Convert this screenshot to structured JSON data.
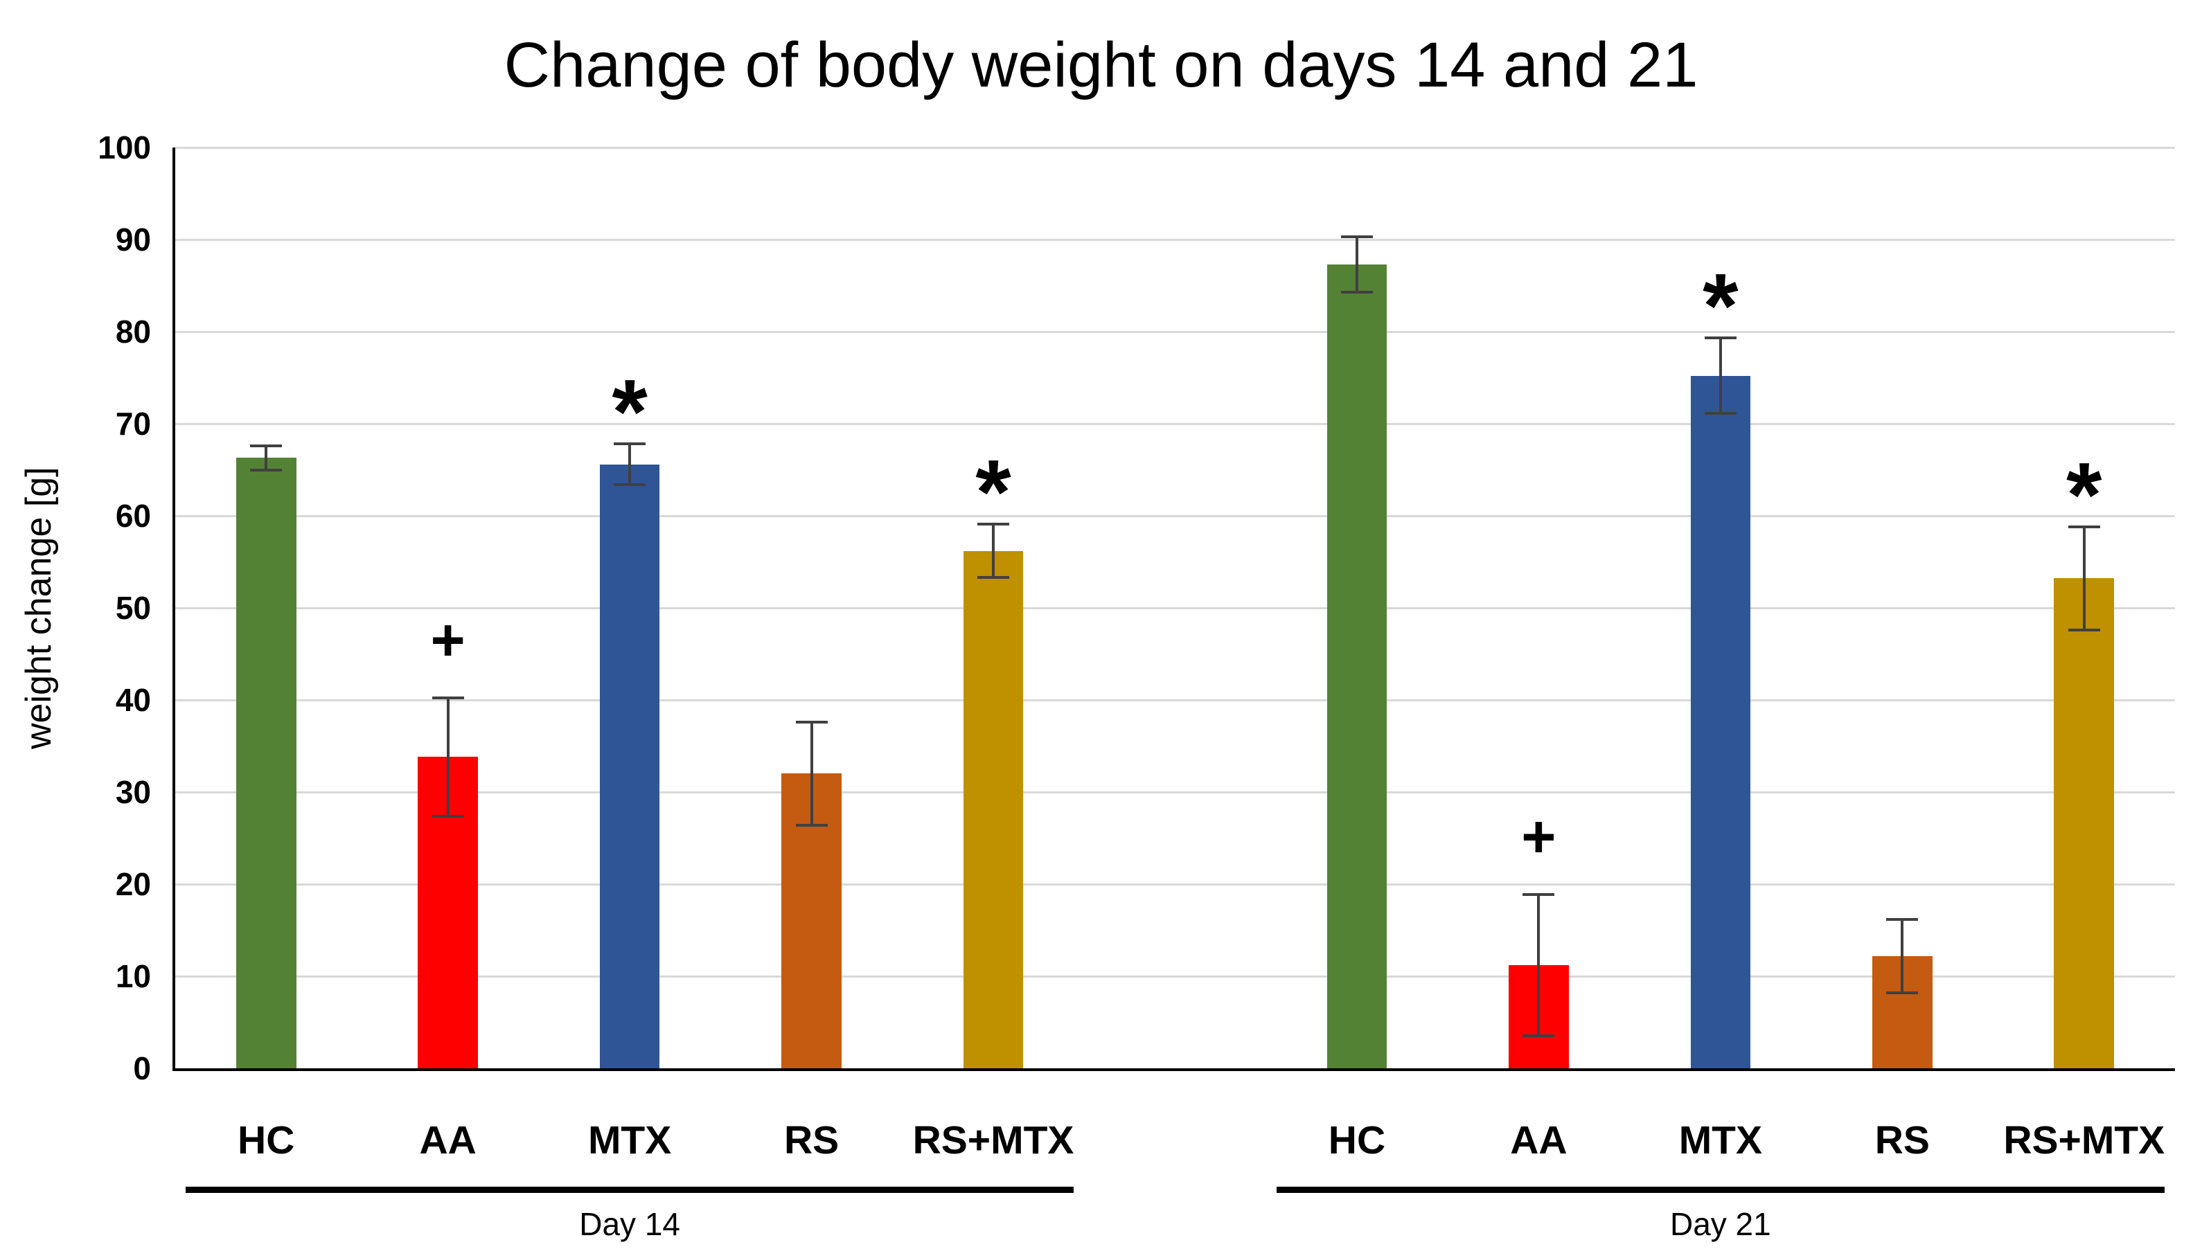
{
  "chart_data": {
    "type": "bar",
    "title": "Change of body weight on days 14 and 21",
    "ylabel": "weight change [g]",
    "ylim": [
      0,
      100
    ],
    "ytick_step": 10,
    "grid": true,
    "legend_position": "none",
    "categories": [
      "HC",
      "AA",
      "MTX",
      "RS",
      "RS+MTX"
    ],
    "bar_colors": [
      "#548235",
      "#FF0000",
      "#2F5597",
      "#C55A11",
      "#BF9000"
    ],
    "gridline_color": "#D9D9D9",
    "axis_color": "#000000",
    "error_bar_color": "#404040",
    "groups": [
      {
        "label": "Day 14",
        "values": [
          66.3,
          33.8,
          65.6,
          32.0,
          56.2
        ],
        "errors": [
          1.3,
          6.4,
          2.2,
          5.6,
          2.9
        ],
        "annotations": [
          "",
          "+",
          "*",
          "",
          "*"
        ]
      },
      {
        "label": "Day 21",
        "values": [
          87.3,
          11.2,
          75.2,
          12.2,
          53.2
        ],
        "errors": [
          3.0,
          7.7,
          4.1,
          4.0,
          5.6
        ],
        "annotations": [
          "",
          "+",
          "*",
          "",
          "*"
        ]
      }
    ]
  }
}
